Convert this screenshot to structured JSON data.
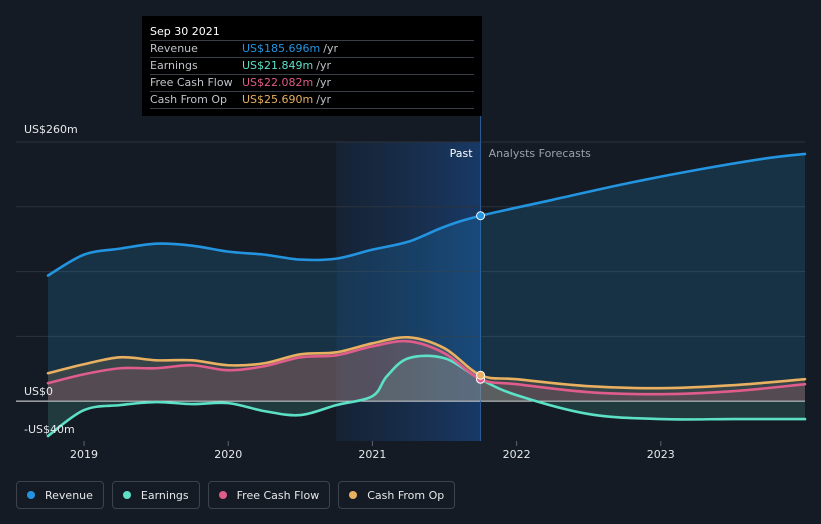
{
  "tooltip": {
    "date": "Sep 30 2021",
    "rows": [
      {
        "label": "Revenue",
        "value": "US$185.696m",
        "unit": "/yr",
        "color": "#2394df"
      },
      {
        "label": "Earnings",
        "value": "US$21.849m",
        "unit": "/yr",
        "color": "#5ce0c6"
      },
      {
        "label": "Free Cash Flow",
        "value": "US$22.082m",
        "unit": "/yr",
        "color": "#e05c8a"
      },
      {
        "label": "Cash From Op",
        "value": "US$25.690m",
        "unit": "/yr",
        "color": "#e8b060"
      }
    ]
  },
  "labels": {
    "past": "Past",
    "forecast": "Analysts Forecasts"
  },
  "legend": [
    {
      "label": "Revenue",
      "color": "#2394df"
    },
    {
      "label": "Earnings",
      "color": "#5ce0c6"
    },
    {
      "label": "Free Cash Flow",
      "color": "#e05c8a"
    },
    {
      "label": "Cash From Op",
      "color": "#e8b060"
    }
  ],
  "chart_data": {
    "type": "line",
    "y_tick_labels": [
      "US$260m",
      "US$0",
      "-US$40m"
    ],
    "x_tick_labels": [
      "2019",
      "2020",
      "2021",
      "2022",
      "2023"
    ],
    "ylim": [
      -40,
      260
    ],
    "xlim": [
      2018.75,
      2024.0
    ],
    "past_end": 2021.75,
    "highlight_start": 2020.75,
    "series": [
      {
        "name": "Revenue",
        "color": "#2394df",
        "x": [
          2018.75,
          2019.0,
          2019.25,
          2019.5,
          2019.75,
          2020.0,
          2020.25,
          2020.5,
          2020.75,
          2021.0,
          2021.25,
          2021.5,
          2021.75,
          2022.25,
          2022.75,
          2023.25,
          2023.75,
          2024.0
        ],
        "y": [
          126,
          147,
          153,
          158,
          156,
          150,
          147,
          142,
          143,
          152,
          160,
          175,
          186,
          202,
          218,
          232,
          244,
          248
        ]
      },
      {
        "name": "Earnings",
        "color": "#5ce0c6",
        "x": [
          2018.75,
          2019.0,
          2019.25,
          2019.5,
          2019.75,
          2020.0,
          2020.25,
          2020.5,
          2020.75,
          2021.0,
          2021.1,
          2021.25,
          2021.5,
          2021.75,
          2022.0,
          2022.5,
          2023.0,
          2023.5,
          2024.0
        ],
        "y": [
          -35,
          -9,
          -4,
          -1,
          -3,
          -2,
          -10,
          -14,
          -4,
          5,
          25,
          43,
          43,
          22,
          6,
          -13,
          -18,
          -18,
          -18
        ]
      },
      {
        "name": "Free Cash Flow",
        "color": "#e05c8a",
        "x": [
          2018.75,
          2019.0,
          2019.25,
          2019.5,
          2019.75,
          2020.0,
          2020.25,
          2020.5,
          2020.75,
          2021.0,
          2021.25,
          2021.5,
          2021.75,
          2022.0,
          2022.5,
          2023.0,
          2023.5,
          2024.0
        ],
        "y": [
          18,
          27,
          33,
          33,
          36,
          31,
          35,
          44,
          46,
          55,
          60,
          48,
          22,
          17,
          9,
          7,
          10,
          17
        ]
      },
      {
        "name": "Cash From Op",
        "color": "#e8b060",
        "x": [
          2018.75,
          2019.0,
          2019.25,
          2019.5,
          2019.75,
          2020.0,
          2020.25,
          2020.5,
          2020.75,
          2021.0,
          2021.25,
          2021.5,
          2021.75,
          2022.0,
          2022.5,
          2023.0,
          2023.5,
          2024.0
        ],
        "y": [
          28,
          37,
          44,
          41,
          41,
          36,
          38,
          47,
          49,
          58,
          64,
          53,
          26,
          22,
          15,
          13,
          16,
          22
        ]
      }
    ]
  }
}
